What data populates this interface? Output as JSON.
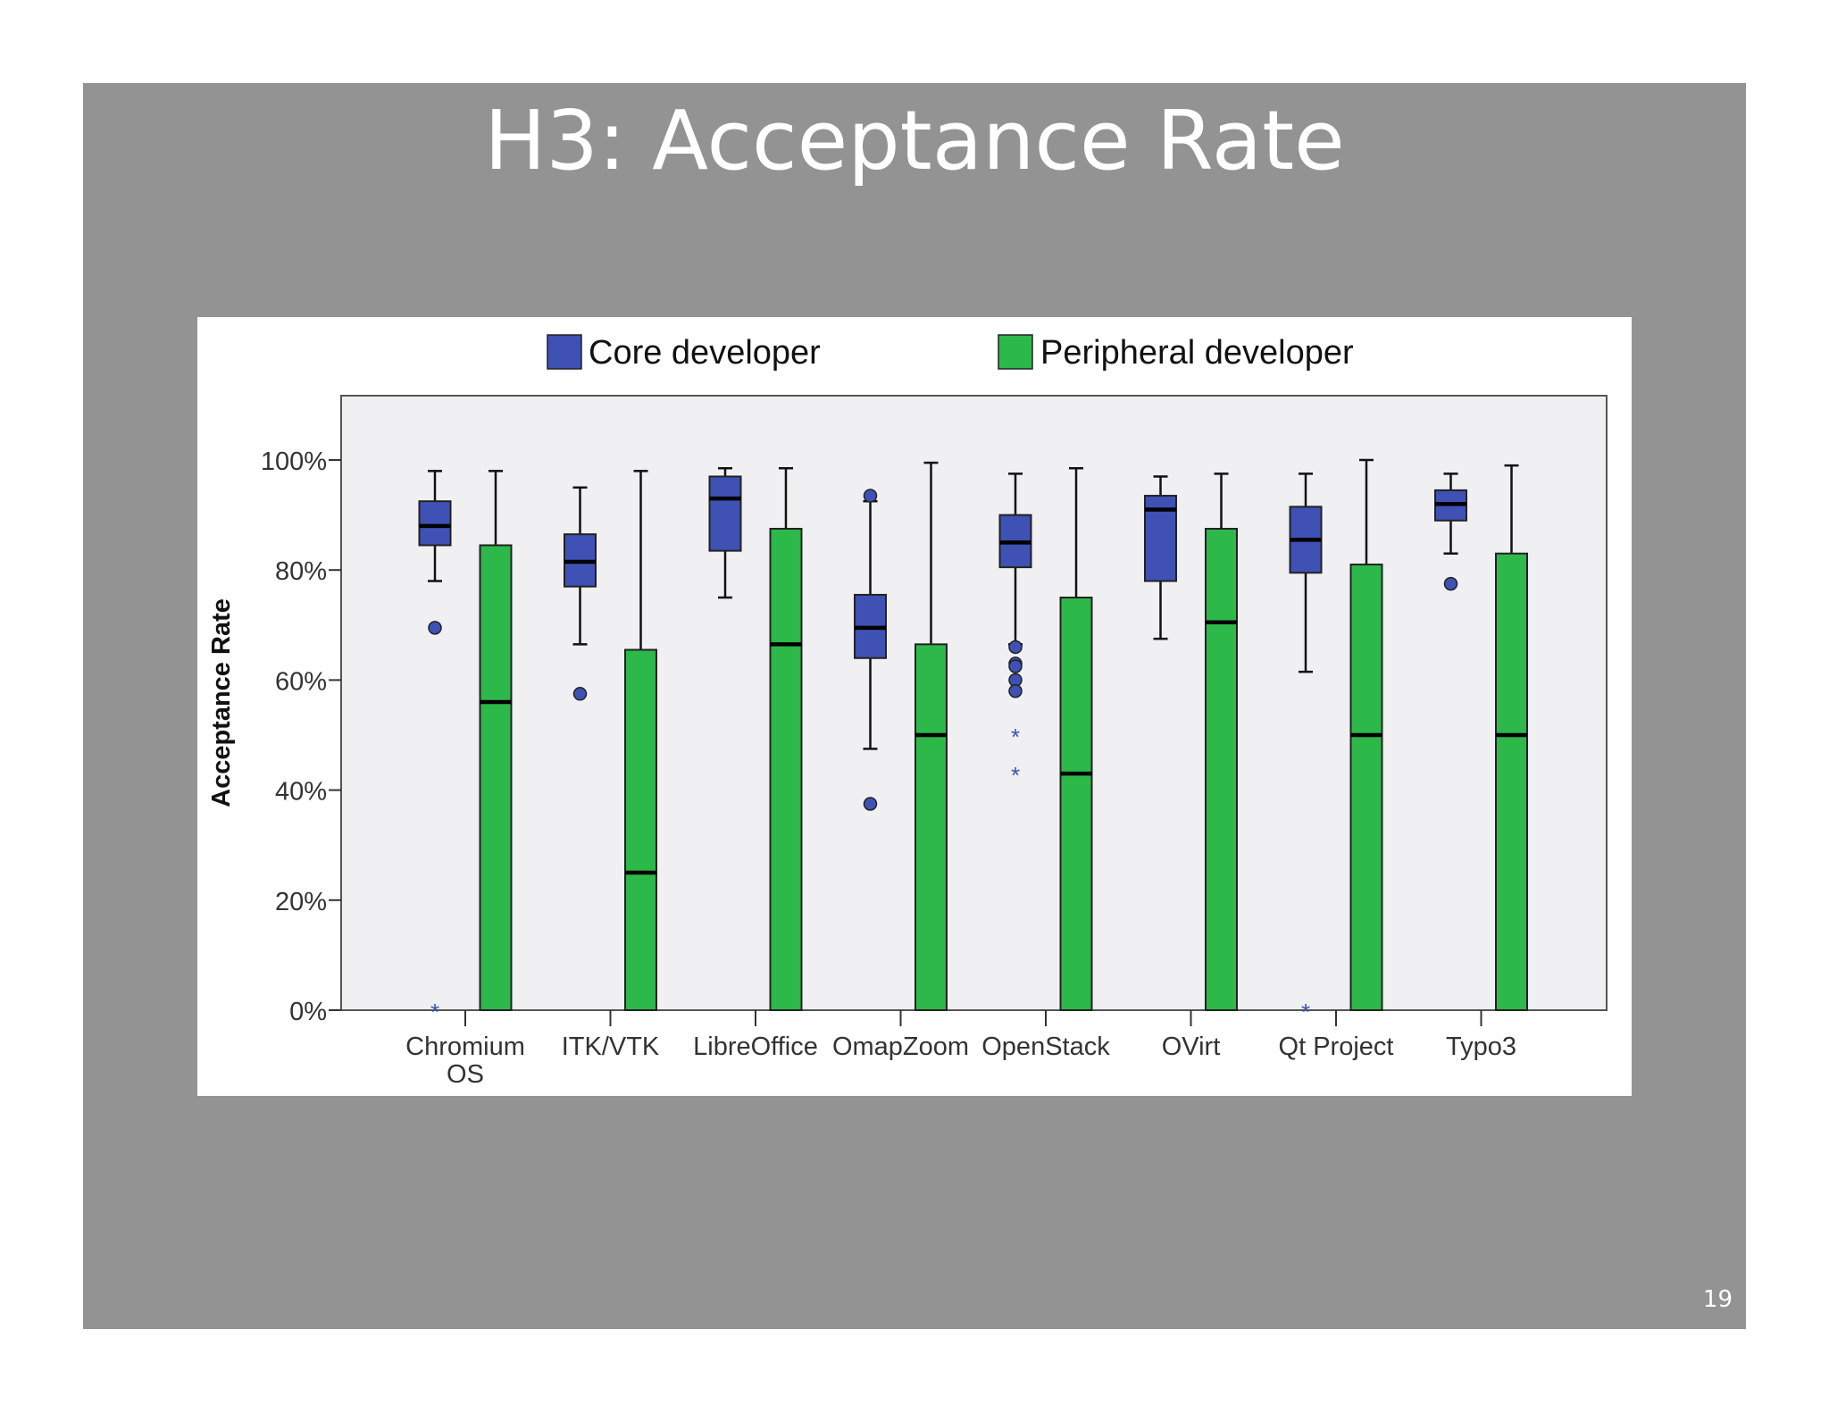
{
  "slide": {
    "title": "H3: Acceptance Rate",
    "page_number": "19",
    "background_color": "#949394"
  },
  "chart_data": {
    "type": "boxplot",
    "title": "",
    "xlabel": "",
    "ylabel": "Acceptance Rate",
    "ylim": [
      0,
      110
    ],
    "yticks": [
      "0%",
      "20%",
      "40%",
      "60%",
      "80%",
      "100%"
    ],
    "ytick_values": [
      0,
      20,
      40,
      60,
      80,
      100
    ],
    "categories": [
      "Chromium OS",
      "ITK/VTK",
      "LibreOffice",
      "OmapZoom",
      "OpenStack",
      "OVirt",
      "Qt Project",
      "Typo3"
    ],
    "category_lines": [
      [
        "Chromium",
        "OS"
      ],
      [
        "ITK/VTK"
      ],
      [
        "LibreOffice"
      ],
      [
        "OmapZoom"
      ],
      [
        "OpenStack"
      ],
      [
        "OVirt"
      ],
      [
        "Qt Project"
      ],
      [
        "Typo3"
      ]
    ],
    "legend": {
      "placement": "top"
    },
    "plot_background": "#f0eff1",
    "grid": false,
    "series": [
      {
        "name": "Core developer",
        "color": "#3f51b5",
        "boxes": [
          {
            "whisker_low": 78,
            "q1": 84.5,
            "median": 88,
            "q3": 92.5,
            "whisker_high": 98,
            "outliers": [
              69.5
            ],
            "extremes": [
              0
            ]
          },
          {
            "whisker_low": 66.5,
            "q1": 77,
            "median": 81.5,
            "q3": 86.5,
            "whisker_high": 95,
            "outliers": [
              57.5
            ],
            "extremes": []
          },
          {
            "whisker_low": 75,
            "q1": 83.5,
            "median": 93,
            "q3": 97,
            "whisker_high": 98.5,
            "outliers": [],
            "extremes": []
          },
          {
            "whisker_low": 47.5,
            "q1": 64,
            "median": 69.5,
            "q3": 75.5,
            "whisker_high": 92.5,
            "outliers": [
              93.5,
              37.5
            ],
            "extremes": []
          },
          {
            "whisker_low": 66.5,
            "q1": 80.5,
            "median": 85,
            "q3": 90,
            "whisker_high": 97.5,
            "outliers": [
              66,
              63,
              62.5,
              60,
              58
            ],
            "extremes": [
              50,
              43
            ]
          },
          {
            "whisker_low": 67.5,
            "q1": 78,
            "median": 91,
            "q3": 93.5,
            "whisker_high": 97,
            "outliers": [],
            "extremes": []
          },
          {
            "whisker_low": 61.5,
            "q1": 79.5,
            "median": 85.5,
            "q3": 91.5,
            "whisker_high": 97.5,
            "outliers": [],
            "extremes": [
              0
            ]
          },
          {
            "whisker_low": 83,
            "q1": 89,
            "median": 92,
            "q3": 94.5,
            "whisker_high": 97.5,
            "outliers": [
              77.5
            ],
            "extremes": []
          }
        ]
      },
      {
        "name": "Peripheral developer",
        "color": "#2db84a",
        "boxes": [
          {
            "whisker_low": 0,
            "q1": 0,
            "median": 56,
            "q3": 84.5,
            "whisker_high": 98,
            "outliers": [],
            "extremes": []
          },
          {
            "whisker_low": 0,
            "q1": 0,
            "median": 25,
            "q3": 65.5,
            "whisker_high": 98,
            "outliers": [],
            "extremes": []
          },
          {
            "whisker_low": 0,
            "q1": 0,
            "median": 66.5,
            "q3": 87.5,
            "whisker_high": 98.5,
            "outliers": [],
            "extremes": []
          },
          {
            "whisker_low": 0,
            "q1": 0,
            "median": 50,
            "q3": 66.5,
            "whisker_high": 99.5,
            "outliers": [],
            "extremes": []
          },
          {
            "whisker_low": 0,
            "q1": 0,
            "median": 43,
            "q3": 75,
            "whisker_high": 98.5,
            "outliers": [],
            "extremes": []
          },
          {
            "whisker_low": 0,
            "q1": 0,
            "median": 70.5,
            "q3": 87.5,
            "whisker_high": 97.5,
            "outliers": [],
            "extremes": []
          },
          {
            "whisker_low": 0,
            "q1": 0,
            "median": 50,
            "q3": 81,
            "whisker_high": 100,
            "outliers": [],
            "extremes": []
          },
          {
            "whisker_low": 0,
            "q1": 0,
            "median": 50,
            "q3": 83,
            "whisker_high": 99,
            "outliers": [],
            "extremes": []
          }
        ]
      }
    ]
  }
}
